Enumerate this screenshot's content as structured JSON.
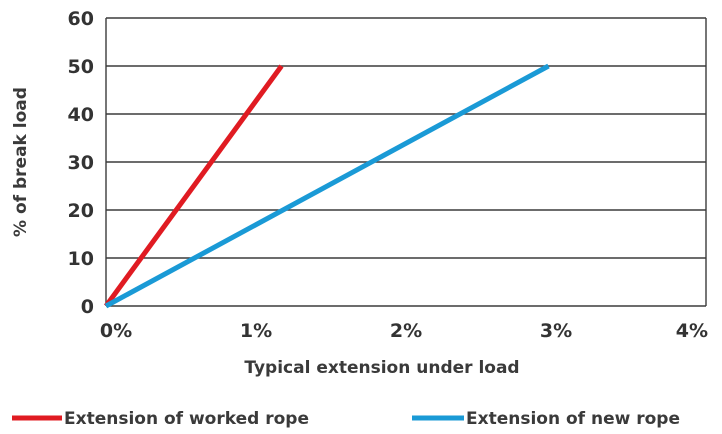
{
  "chart_data": {
    "type": "line",
    "title": "",
    "xlabel": "Typical extension under load",
    "ylabel": "% of break load",
    "xlim": [
      0,
      4
    ],
    "ylim": [
      0,
      60
    ],
    "x_ticks": [
      0,
      1,
      2,
      3,
      4
    ],
    "x_tick_labels": [
      "0%",
      "1%",
      "2%",
      "3%",
      "4%"
    ],
    "y_ticks": [
      0,
      10,
      20,
      30,
      40,
      50,
      60
    ],
    "y_tick_labels": [
      "0",
      "10",
      "20",
      "30",
      "40",
      "50",
      "60"
    ],
    "grid": "horizontal",
    "legend_position": "bottom",
    "series": [
      {
        "name": "Extension of worked rope",
        "color": "#e01b22",
        "points": [
          [
            0,
            0
          ],
          [
            1.17,
            50
          ]
        ]
      },
      {
        "name": "Extension of new rope",
        "color": "#1a9ad6",
        "points": [
          [
            0,
            0
          ],
          [
            2.95,
            50
          ]
        ]
      }
    ]
  }
}
